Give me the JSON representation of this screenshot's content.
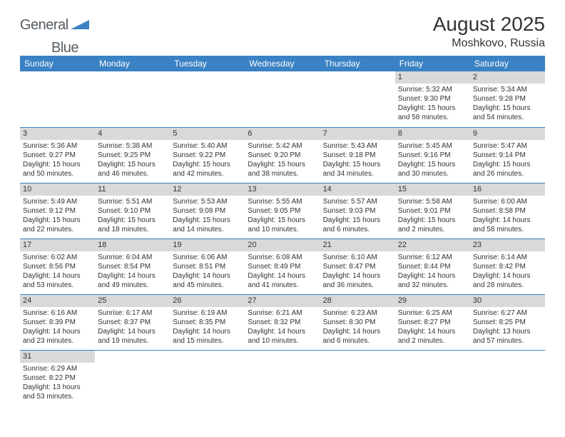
{
  "logo": {
    "text_left": "General",
    "text_right": "Blue",
    "triangle_color": "#3b82c4",
    "text_color": "#555c63"
  },
  "title": "August 2025",
  "location": "Moshkovo, Russia",
  "colors": {
    "header_bg": "#3b82c4",
    "header_text": "#ffffff",
    "daynum_bg": "#d9d9d9",
    "body_text": "#333333",
    "row_border": "#3b82c4",
    "page_bg": "#ffffff"
  },
  "weekdays": [
    "Sunday",
    "Monday",
    "Tuesday",
    "Wednesday",
    "Thursday",
    "Friday",
    "Saturday"
  ],
  "weeks": [
    [
      {
        "day": "",
        "sunrise": "",
        "sunset": "",
        "daylight": ""
      },
      {
        "day": "",
        "sunrise": "",
        "sunset": "",
        "daylight": ""
      },
      {
        "day": "",
        "sunrise": "",
        "sunset": "",
        "daylight": ""
      },
      {
        "day": "",
        "sunrise": "",
        "sunset": "",
        "daylight": ""
      },
      {
        "day": "",
        "sunrise": "",
        "sunset": "",
        "daylight": ""
      },
      {
        "day": "1",
        "sunrise": "Sunrise: 5:32 AM",
        "sunset": "Sunset: 9:30 PM",
        "daylight": "Daylight: 15 hours and 58 minutes."
      },
      {
        "day": "2",
        "sunrise": "Sunrise: 5:34 AM",
        "sunset": "Sunset: 9:28 PM",
        "daylight": "Daylight: 15 hours and 54 minutes."
      }
    ],
    [
      {
        "day": "3",
        "sunrise": "Sunrise: 5:36 AM",
        "sunset": "Sunset: 9:27 PM",
        "daylight": "Daylight: 15 hours and 50 minutes."
      },
      {
        "day": "4",
        "sunrise": "Sunrise: 5:38 AM",
        "sunset": "Sunset: 9:25 PM",
        "daylight": "Daylight: 15 hours and 46 minutes."
      },
      {
        "day": "5",
        "sunrise": "Sunrise: 5:40 AM",
        "sunset": "Sunset: 9:22 PM",
        "daylight": "Daylight: 15 hours and 42 minutes."
      },
      {
        "day": "6",
        "sunrise": "Sunrise: 5:42 AM",
        "sunset": "Sunset: 9:20 PM",
        "daylight": "Daylight: 15 hours and 38 minutes."
      },
      {
        "day": "7",
        "sunrise": "Sunrise: 5:43 AM",
        "sunset": "Sunset: 9:18 PM",
        "daylight": "Daylight: 15 hours and 34 minutes."
      },
      {
        "day": "8",
        "sunrise": "Sunrise: 5:45 AM",
        "sunset": "Sunset: 9:16 PM",
        "daylight": "Daylight: 15 hours and 30 minutes."
      },
      {
        "day": "9",
        "sunrise": "Sunrise: 5:47 AM",
        "sunset": "Sunset: 9:14 PM",
        "daylight": "Daylight: 15 hours and 26 minutes."
      }
    ],
    [
      {
        "day": "10",
        "sunrise": "Sunrise: 5:49 AM",
        "sunset": "Sunset: 9:12 PM",
        "daylight": "Daylight: 15 hours and 22 minutes."
      },
      {
        "day": "11",
        "sunrise": "Sunrise: 5:51 AM",
        "sunset": "Sunset: 9:10 PM",
        "daylight": "Daylight: 15 hours and 18 minutes."
      },
      {
        "day": "12",
        "sunrise": "Sunrise: 5:53 AM",
        "sunset": "Sunset: 9:08 PM",
        "daylight": "Daylight: 15 hours and 14 minutes."
      },
      {
        "day": "13",
        "sunrise": "Sunrise: 5:55 AM",
        "sunset": "Sunset: 9:05 PM",
        "daylight": "Daylight: 15 hours and 10 minutes."
      },
      {
        "day": "14",
        "sunrise": "Sunrise: 5:57 AM",
        "sunset": "Sunset: 9:03 PM",
        "daylight": "Daylight: 15 hours and 6 minutes."
      },
      {
        "day": "15",
        "sunrise": "Sunrise: 5:58 AM",
        "sunset": "Sunset: 9:01 PM",
        "daylight": "Daylight: 15 hours and 2 minutes."
      },
      {
        "day": "16",
        "sunrise": "Sunrise: 6:00 AM",
        "sunset": "Sunset: 8:58 PM",
        "daylight": "Daylight: 14 hours and 58 minutes."
      }
    ],
    [
      {
        "day": "17",
        "sunrise": "Sunrise: 6:02 AM",
        "sunset": "Sunset: 8:56 PM",
        "daylight": "Daylight: 14 hours and 53 minutes."
      },
      {
        "day": "18",
        "sunrise": "Sunrise: 6:04 AM",
        "sunset": "Sunset: 8:54 PM",
        "daylight": "Daylight: 14 hours and 49 minutes."
      },
      {
        "day": "19",
        "sunrise": "Sunrise: 6:06 AM",
        "sunset": "Sunset: 8:51 PM",
        "daylight": "Daylight: 14 hours and 45 minutes."
      },
      {
        "day": "20",
        "sunrise": "Sunrise: 6:08 AM",
        "sunset": "Sunset: 8:49 PM",
        "daylight": "Daylight: 14 hours and 41 minutes."
      },
      {
        "day": "21",
        "sunrise": "Sunrise: 6:10 AM",
        "sunset": "Sunset: 8:47 PM",
        "daylight": "Daylight: 14 hours and 36 minutes."
      },
      {
        "day": "22",
        "sunrise": "Sunrise: 6:12 AM",
        "sunset": "Sunset: 8:44 PM",
        "daylight": "Daylight: 14 hours and 32 minutes."
      },
      {
        "day": "23",
        "sunrise": "Sunrise: 6:14 AM",
        "sunset": "Sunset: 8:42 PM",
        "daylight": "Daylight: 14 hours and 28 minutes."
      }
    ],
    [
      {
        "day": "24",
        "sunrise": "Sunrise: 6:16 AM",
        "sunset": "Sunset: 8:39 PM",
        "daylight": "Daylight: 14 hours and 23 minutes."
      },
      {
        "day": "25",
        "sunrise": "Sunrise: 6:17 AM",
        "sunset": "Sunset: 8:37 PM",
        "daylight": "Daylight: 14 hours and 19 minutes."
      },
      {
        "day": "26",
        "sunrise": "Sunrise: 6:19 AM",
        "sunset": "Sunset: 8:35 PM",
        "daylight": "Daylight: 14 hours and 15 minutes."
      },
      {
        "day": "27",
        "sunrise": "Sunrise: 6:21 AM",
        "sunset": "Sunset: 8:32 PM",
        "daylight": "Daylight: 14 hours and 10 minutes."
      },
      {
        "day": "28",
        "sunrise": "Sunrise: 6:23 AM",
        "sunset": "Sunset: 8:30 PM",
        "daylight": "Daylight: 14 hours and 6 minutes."
      },
      {
        "day": "29",
        "sunrise": "Sunrise: 6:25 AM",
        "sunset": "Sunset: 8:27 PM",
        "daylight": "Daylight: 14 hours and 2 minutes."
      },
      {
        "day": "30",
        "sunrise": "Sunrise: 6:27 AM",
        "sunset": "Sunset: 8:25 PM",
        "daylight": "Daylight: 13 hours and 57 minutes."
      }
    ],
    [
      {
        "day": "31",
        "sunrise": "Sunrise: 6:29 AM",
        "sunset": "Sunset: 8:22 PM",
        "daylight": "Daylight: 13 hours and 53 minutes."
      },
      {
        "day": "",
        "sunrise": "",
        "sunset": "",
        "daylight": ""
      },
      {
        "day": "",
        "sunrise": "",
        "sunset": "",
        "daylight": ""
      },
      {
        "day": "",
        "sunrise": "",
        "sunset": "",
        "daylight": ""
      },
      {
        "day": "",
        "sunrise": "",
        "sunset": "",
        "daylight": ""
      },
      {
        "day": "",
        "sunrise": "",
        "sunset": "",
        "daylight": ""
      },
      {
        "day": "",
        "sunrise": "",
        "sunset": "",
        "daylight": ""
      }
    ]
  ]
}
